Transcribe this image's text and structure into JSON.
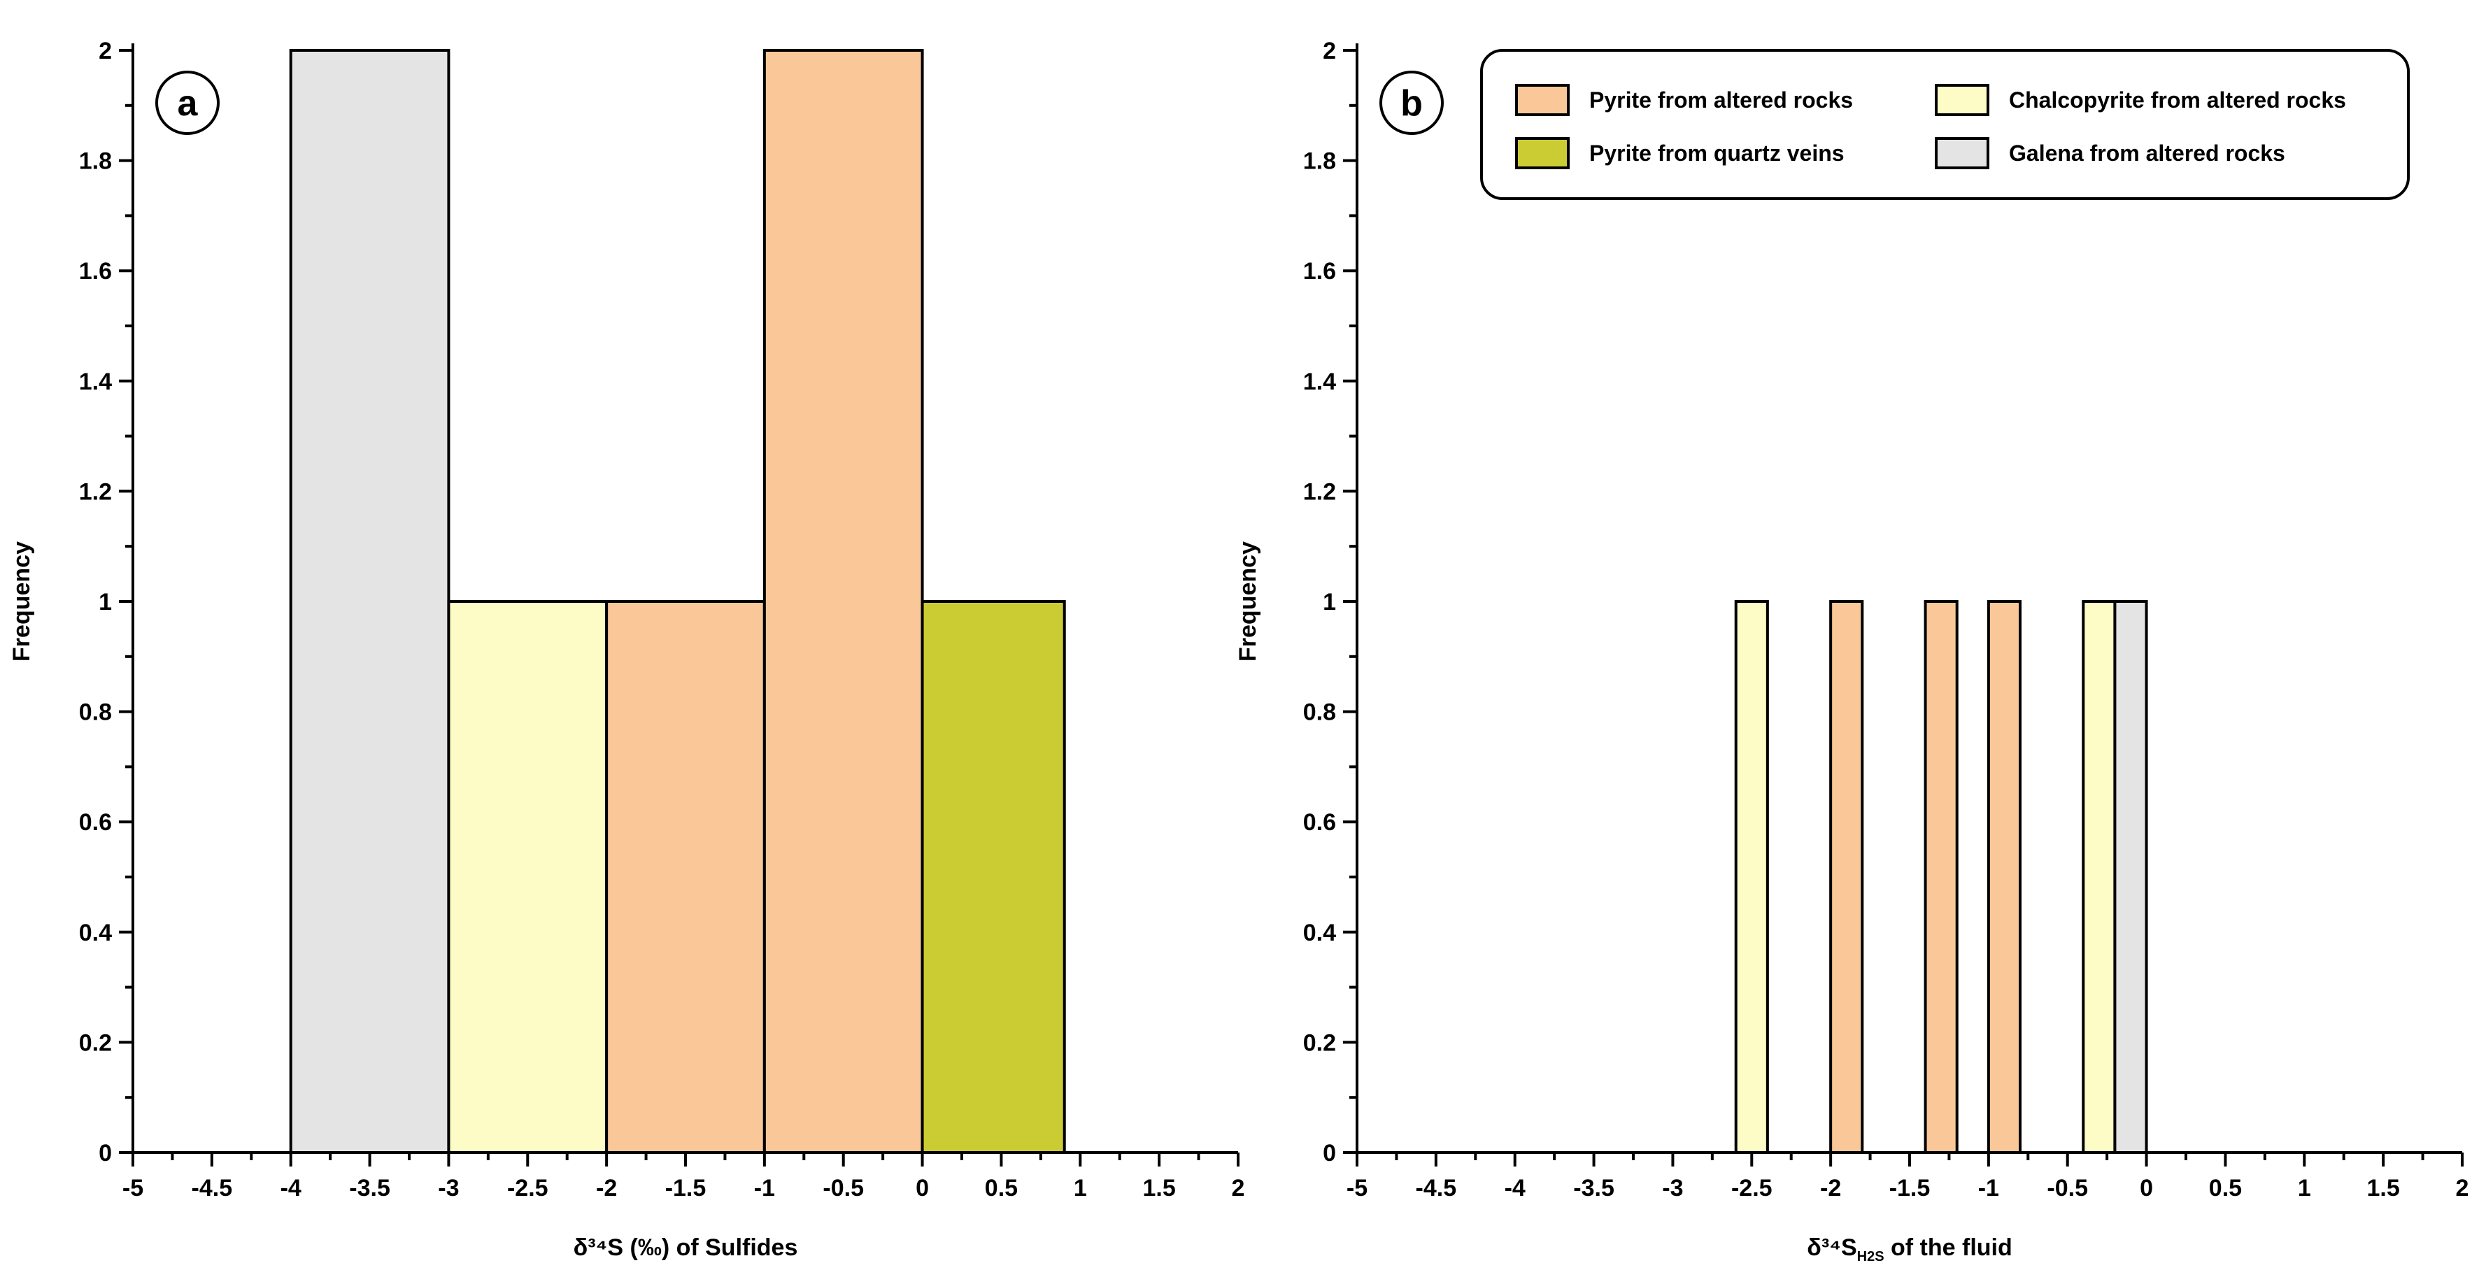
{
  "chart_data": [
    {
      "panel": "a",
      "type": "bar",
      "title": "",
      "xlabel": "δ³⁴S (‰) of Sulfides",
      "ylabel": "Frequency",
      "xlim": [
        -5,
        2
      ],
      "ylim": [
        0,
        2
      ],
      "x_ticks": [
        "-5",
        "-4.5",
        "-4",
        "-3.5",
        "-3",
        "-2.5",
        "-2",
        "-1.5",
        "-1",
        "-0.5",
        "0",
        "0.5",
        "1",
        "1.5",
        "2"
      ],
      "y_ticks": [
        "0",
        "0.2",
        "0.4",
        "0.6",
        "0.8",
        "1",
        "1.2",
        "1.4",
        "1.6",
        "1.8",
        "2"
      ],
      "bars": [
        {
          "series": "Galena from altered rocks",
          "x0": -4,
          "x1": -3,
          "value": 2
        },
        {
          "series": "Chalcopyrite from altered rocks",
          "x0": -3,
          "x1": -2,
          "value": 1
        },
        {
          "series": "Pyrite from altered rocks",
          "x0": -2,
          "x1": -1,
          "value": 1
        },
        {
          "series": "Pyrite from altered rocks",
          "x0": -1,
          "x1": 0,
          "value": 2
        },
        {
          "series": "Pyrite from quartz veins",
          "x0": 0,
          "x1": 0.9,
          "value": 1
        }
      ]
    },
    {
      "panel": "b",
      "type": "bar",
      "title": "",
      "xlabel_main": "δ³⁴S",
      "xlabel_sub": "H2S",
      "xlabel_rest": " of the fluid",
      "ylabel": "Frequency",
      "xlim": [
        -5,
        2
      ],
      "ylim": [
        0,
        2
      ],
      "x_ticks": [
        "-5",
        "-4.5",
        "-4",
        "-3.5",
        "-3",
        "-2.5",
        "-2",
        "-1.5",
        "-1",
        "-0.5",
        "0",
        "0.5",
        "1",
        "1.5",
        "2"
      ],
      "y_ticks": [
        "0",
        "0.2",
        "0.4",
        "0.6",
        "0.8",
        "1",
        "1.2",
        "1.4",
        "1.6",
        "1.8",
        "2"
      ],
      "bars": [
        {
          "series": "Chalcopyrite from altered rocks",
          "x0": -2.6,
          "x1": -2.4,
          "value": 1
        },
        {
          "series": "Pyrite from altered rocks",
          "x0": -2.0,
          "x1": -1.8,
          "value": 1
        },
        {
          "series": "Pyrite from altered rocks",
          "x0": -1.4,
          "x1": -1.2,
          "value": 1
        },
        {
          "series": "Pyrite from altered rocks",
          "x0": -1.0,
          "x1": -0.8,
          "value": 1
        },
        {
          "series": "Chalcopyrite from altered rocks",
          "x0": -0.4,
          "x1": -0.2,
          "value": 1
        },
        {
          "series": "Galena from altered rocks",
          "x0": -0.2,
          "x1": 0.0,
          "value": 1
        }
      ]
    }
  ],
  "legend": {
    "placement": "top-right of panel b",
    "items": [
      {
        "label": "Pyrite from altered rocks",
        "color": "#FAC898"
      },
      {
        "label": "Chalcopyrite from altered rocks",
        "color": "#FDFCC6"
      },
      {
        "label": "Pyrite from quartz veins",
        "color": "#CBCC33"
      },
      {
        "label": "Galena from altered rocks",
        "color": "#E4E4E4"
      }
    ]
  },
  "colors": {
    "Pyrite from altered rocks": "#FAC898",
    "Chalcopyrite from altered rocks": "#FDFCC6",
    "Pyrite from quartz veins": "#CBCC33",
    "Galena from altered rocks": "#E4E4E4"
  }
}
